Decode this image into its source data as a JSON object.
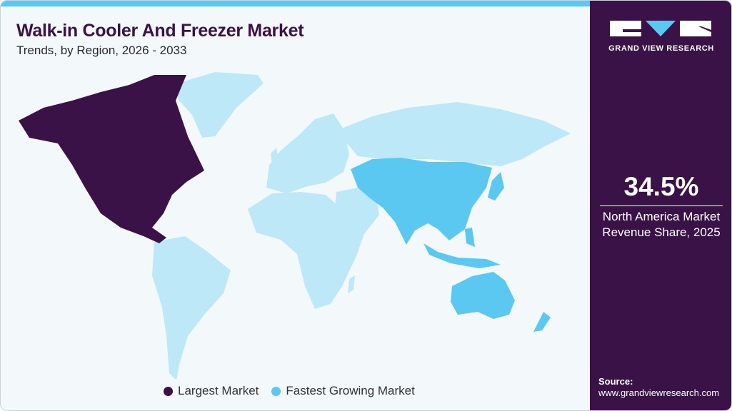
{
  "header": {
    "title": "Walk-in Cooler And Freezer Market",
    "subtitle": "Trends, by Region, 2026 - 2033"
  },
  "brand": {
    "name": "GRAND VIEW RESEARCH"
  },
  "stat": {
    "value": "34.5%",
    "label_line1": "North America Market",
    "label_line2": "Revenue Share, 2025"
  },
  "source": {
    "label": "Source:",
    "url": "www.grandviewresearch.com"
  },
  "legend": [
    {
      "label": "Largest Market",
      "color": "#3a1248"
    },
    {
      "label": "Fastest Growing Market",
      "color": "#5bc8f2"
    }
  ],
  "map": {
    "largest_market": "North America",
    "fastest_growing_market": "Asia Pacific",
    "colors": {
      "largest": "#3a1248",
      "fastest": "#5bc8f2",
      "other": "#bde8f7",
      "background": "#f3f8fb"
    }
  }
}
